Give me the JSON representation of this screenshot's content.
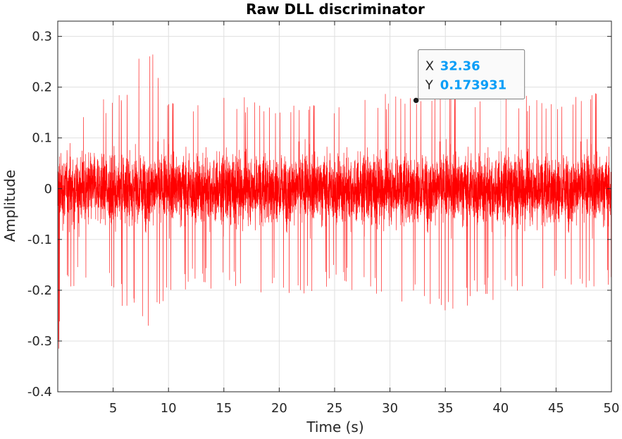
{
  "chart_data": {
    "type": "line",
    "title": "Raw DLL discriminator",
    "xlabel": "Time (s)",
    "ylabel": "Amplitude",
    "xlim": [
      0,
      50
    ],
    "ylim": [
      -0.4,
      0.33
    ],
    "xticks": [
      5,
      10,
      15,
      20,
      25,
      30,
      35,
      40,
      45,
      50
    ],
    "xtick_labels": [
      "5",
      "10",
      "15",
      "20",
      "25",
      "30",
      "35",
      "40",
      "45",
      "50"
    ],
    "yticks": [
      -0.4,
      -0.3,
      -0.2,
      -0.1,
      0,
      0.1,
      0.2,
      0.3
    ],
    "ytick_labels": [
      "-0.4",
      "-0.3",
      "-0.2",
      "-0.1",
      "0",
      "0.1",
      "0.2",
      "0.3"
    ],
    "grid": true,
    "series": [
      {
        "color": "#ff0000",
        "description": "dense noise-like signal centered near 0",
        "x_range": [
          0,
          50
        ],
        "envelope_x": [
          0,
          0.3,
          1,
          2,
          5,
          8,
          10,
          15,
          20,
          25,
          30,
          35,
          40,
          45,
          50
        ],
        "envelope_upper": [
          0.05,
          0.1,
          0.15,
          0.17,
          0.19,
          0.32,
          0.18,
          0.19,
          0.17,
          0.18,
          0.19,
          0.2,
          0.19,
          0.18,
          0.21
        ],
        "envelope_lower": [
          -0.4,
          -0.25,
          -0.22,
          -0.2,
          -0.21,
          -0.29,
          -0.2,
          -0.2,
          -0.22,
          -0.19,
          -0.23,
          -0.24,
          -0.22,
          -0.2,
          -0.19
        ],
        "typical_band": [
          -0.12,
          0.12
        ]
      }
    ],
    "datatip": {
      "x_label": "X",
      "x_value": "32.36",
      "y_label": "Y",
      "y_value": "0.173931",
      "x": 32.36,
      "y": 0.173931
    }
  },
  "colors": {
    "line": "#ff0000",
    "grid": "#dfdfdf",
    "axis": "#262626",
    "datatip_value": "#0a9ef7"
  }
}
